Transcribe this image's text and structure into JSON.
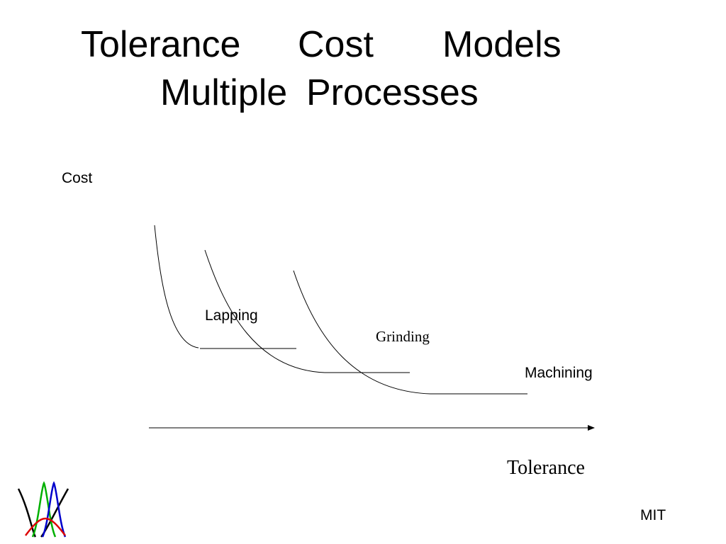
{
  "slide": {
    "title_line_1": [
      "Tolerance",
      "Cost",
      "Models"
    ],
    "title_line_2": [
      "Multiple",
      "Processes"
    ],
    "footer": "MIT"
  },
  "diagram": {
    "y_axis_label": "Cost",
    "x_axis_label": "Tolerance",
    "curve_labels": [
      "Lapping",
      "Grinding",
      "Machining"
    ]
  },
  "logo": {
    "name": "bell-curves-logo",
    "colors": [
      "#000000",
      "#00b000",
      "#0000cc",
      "#dd0000"
    ]
  }
}
